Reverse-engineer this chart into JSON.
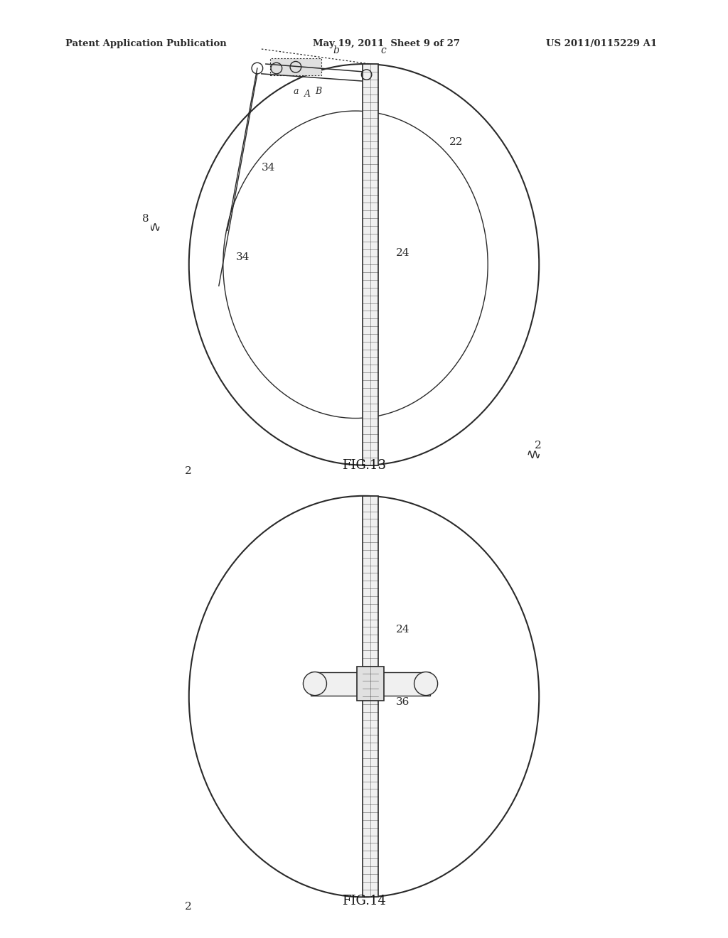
{
  "bg_color": "#ffffff",
  "header_left": "Patent Application Publication",
  "header_mid": "May 19, 2011  Sheet 9 of 27",
  "header_right": "US 2011/0115229 A1",
  "fig13_caption": "FIG.13",
  "fig14_caption": "FIG.14",
  "line_color": "#2a2a2a",
  "label_color": "#2a2a2a"
}
